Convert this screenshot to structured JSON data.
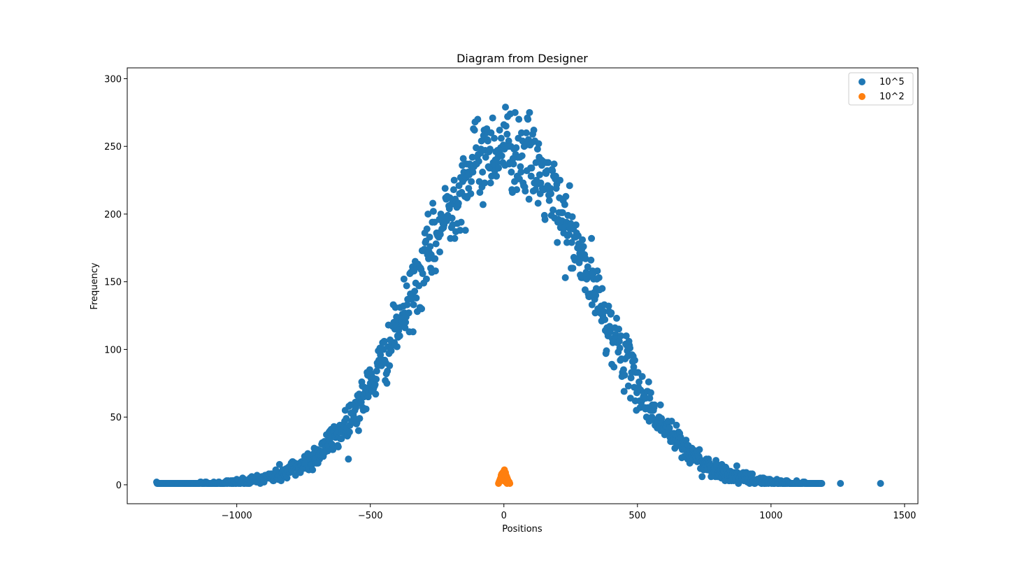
{
  "chart_data": {
    "type": "scatter",
    "title": "Diagram from Designer",
    "xlabel": "Positions",
    "ylabel": "Frequency",
    "xlim": [
      -1410,
      1550
    ],
    "ylim": [
      -14,
      308
    ],
    "xticks": [
      -1000,
      -500,
      0,
      500,
      1000,
      1500
    ],
    "xtick_labels": [
      "−1000",
      "−500",
      "0",
      "500",
      "1000",
      "1500"
    ],
    "yticks": [
      0,
      50,
      100,
      150,
      200,
      250,
      300
    ],
    "ytick_labels": [
      "0",
      "50",
      "100",
      "150",
      "200",
      "250",
      "300"
    ],
    "grid": false,
    "legend_position": "top-right",
    "series": [
      {
        "name": "10^5",
        "color": "#1f77b4",
        "distribution": "normal",
        "total": 100000,
        "mean": 0,
        "sigma": 320,
        "peak": 250,
        "x_range": [
          -1300,
          1190
        ],
        "bin_width": 2,
        "outliers": [
          [
            1260,
            1
          ],
          [
            1410,
            1
          ]
        ]
      },
      {
        "name": "10^2",
        "color": "#ff7f0e",
        "points": [
          [
            -20,
            1
          ],
          [
            -18,
            2
          ],
          [
            -16,
            3
          ],
          [
            -14,
            4
          ],
          [
            -12,
            5
          ],
          [
            -10,
            7
          ],
          [
            -8,
            8
          ],
          [
            -6,
            6
          ],
          [
            -4,
            9
          ],
          [
            -2,
            7
          ],
          [
            0,
            10
          ],
          [
            2,
            11
          ],
          [
            4,
            8
          ],
          [
            6,
            9
          ],
          [
            8,
            7
          ],
          [
            10,
            6
          ],
          [
            12,
            5
          ],
          [
            14,
            4
          ],
          [
            16,
            3
          ],
          [
            18,
            2
          ],
          [
            20,
            2
          ],
          [
            22,
            1
          ],
          [
            -6,
            4
          ],
          [
            4,
            5
          ],
          [
            -2,
            3
          ],
          [
            8,
            2
          ],
          [
            12,
            1
          ]
        ]
      }
    ]
  }
}
